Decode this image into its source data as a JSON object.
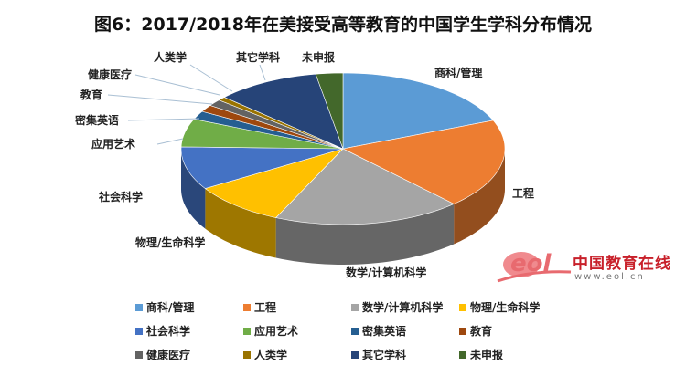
{
  "chart_data": {
    "type": "pie",
    "style": "3d",
    "title": "图6：2017/2018年在美接受高等教育的中国学生学科分布情况",
    "start_angle": "12 o'clock, clockwise",
    "legend_position": "bottom",
    "categories": [
      "商科/管理",
      "工程",
      "数学/计算机科学",
      "物理/生命科学",
      "社会科学",
      "应用艺术",
      "密集英语",
      "教育",
      "健康医疗",
      "人类学",
      "其它学科",
      "未申报"
    ],
    "values": [
      18.9,
      19.1,
      18.8,
      9.4,
      9.2,
      6.0,
      1.8,
      1.5,
      1.4,
      0.8,
      10.4,
      2.7
    ],
    "unit": "%",
    "colors": [
      "#5b9bd5",
      "#ed7d31",
      "#a5a5a5",
      "#ffc000",
      "#4472c4",
      "#70ad47",
      "#255e91",
      "#9e480e",
      "#636363",
      "#997300",
      "#264478",
      "#43682b"
    ]
  },
  "logo": {
    "eol": "eol",
    "name": "中国教育在线",
    "url": "www.eol.cn"
  }
}
